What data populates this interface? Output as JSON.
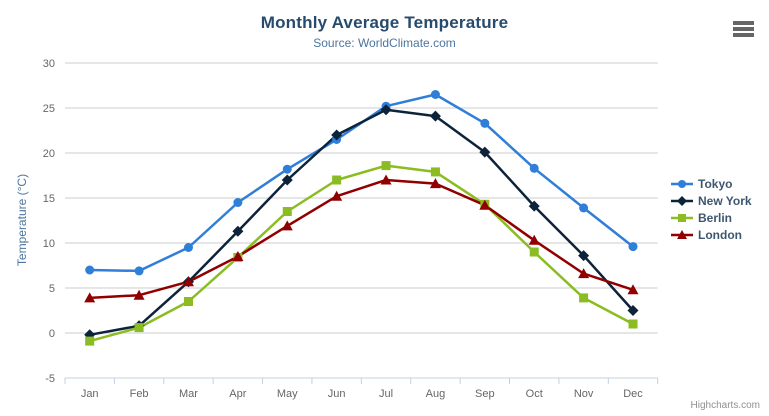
{
  "credits": {
    "label": "Highcharts.com"
  },
  "export_menu": {
    "icon": "hamburger-icon"
  },
  "chart_data": {
    "type": "line",
    "title": "Monthly Average Temperature",
    "subtitle": "Source: WorldClimate.com",
    "categories": [
      "Jan",
      "Feb",
      "Mar",
      "Apr",
      "May",
      "Jun",
      "Jul",
      "Aug",
      "Sep",
      "Oct",
      "Nov",
      "Dec"
    ],
    "xlabel": "",
    "ylabel": "Temperature (°C)",
    "ylim": [
      -5,
      30
    ],
    "yticks": [
      -5,
      0,
      5,
      10,
      15,
      20,
      25,
      30
    ],
    "grid": true,
    "legend_position": "right",
    "colors": {
      "grid_line": "#cccccc",
      "axis_line": "#c0d0e0",
      "axis_label": "#666666",
      "title": "#274b6d",
      "subtitle": "#4d759e",
      "legend_text": "#3e576f"
    },
    "series": [
      {
        "name": "Tokyo",
        "color": "#2f7ed8",
        "marker": "circle",
        "values": [
          7.0,
          6.9,
          9.5,
          14.5,
          18.2,
          21.5,
          25.2,
          26.5,
          23.3,
          18.3,
          13.9,
          9.6
        ]
      },
      {
        "name": "New York",
        "color": "#0d233a",
        "marker": "diamond",
        "values": [
          -0.2,
          0.8,
          5.7,
          11.3,
          17.0,
          22.0,
          24.8,
          24.1,
          20.1,
          14.1,
          8.6,
          2.5
        ]
      },
      {
        "name": "Berlin",
        "color": "#8bbc21",
        "marker": "square",
        "values": [
          -0.9,
          0.6,
          3.5,
          8.4,
          13.5,
          17.0,
          18.6,
          17.9,
          14.3,
          9.0,
          3.9,
          1.0
        ]
      },
      {
        "name": "London",
        "color": "#910000",
        "marker": "triangle",
        "values": [
          3.9,
          4.2,
          5.7,
          8.5,
          11.9,
          15.2,
          17.0,
          16.6,
          14.2,
          10.3,
          6.6,
          4.8
        ]
      }
    ]
  }
}
